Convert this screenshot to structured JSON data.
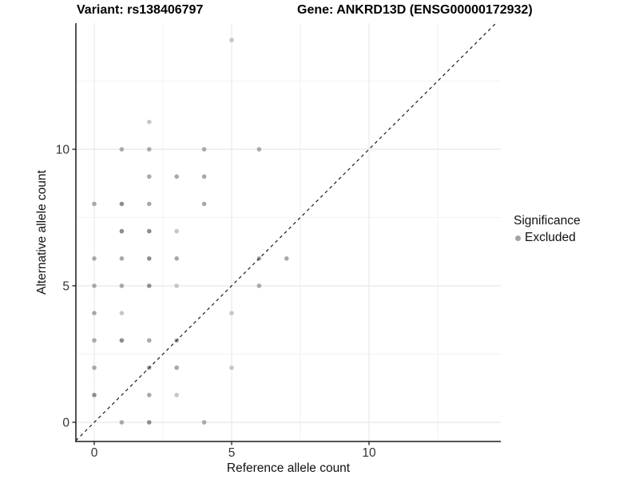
{
  "chart_data": {
    "type": "scatter",
    "title_left": "Variant: rs138406797",
    "title_right": "Gene: ANKRD13D (ENSG00000172932)",
    "xlabel": "Reference allele count",
    "ylabel": "Alternative allele count",
    "x_ticks": [
      0,
      5,
      10
    ],
    "y_ticks": [
      0,
      5,
      10
    ],
    "x_minor_gridlines": [
      2.5,
      7.5,
      12.5
    ],
    "y_minor_gridlines": [
      2.5,
      7.5,
      12.5
    ],
    "xlim": [
      -0.67,
      14.8
    ],
    "ylim": [
      -0.7,
      14.62
    ],
    "grid": "on",
    "identity_line": {
      "show": true,
      "style": "dashed",
      "slope": 1,
      "intercept": 0,
      "color": "#1b1b1b"
    },
    "legend": {
      "position": "right",
      "title": "Significance",
      "items": [
        {
          "label": "Excluded",
          "color": "#a3a3a3"
        }
      ]
    },
    "point_shade_colors": {
      "d": "#8d8d8d",
      "m": "#a8a8a8",
      "l": "#c6c6c6"
    },
    "series": [
      {
        "name": "Excluded",
        "points": [
          [
            5,
            14,
            "l"
          ],
          [
            2,
            11,
            "l"
          ],
          [
            1,
            10,
            "m"
          ],
          [
            2,
            10,
            "m"
          ],
          [
            4,
            10,
            "m"
          ],
          [
            6,
            10,
            "m"
          ],
          [
            2,
            9,
            "m"
          ],
          [
            3,
            9,
            "m"
          ],
          [
            4,
            9,
            "m"
          ],
          [
            0,
            8,
            "m"
          ],
          [
            1,
            8,
            "d"
          ],
          [
            2,
            8,
            "m"
          ],
          [
            4,
            8,
            "m"
          ],
          [
            1,
            7,
            "d"
          ],
          [
            2,
            7,
            "d"
          ],
          [
            3,
            7,
            "l"
          ],
          [
            0,
            6,
            "m"
          ],
          [
            1,
            6,
            "m"
          ],
          [
            2,
            6,
            "d"
          ],
          [
            3,
            6,
            "m"
          ],
          [
            6,
            6,
            "m"
          ],
          [
            7,
            6,
            "m"
          ],
          [
            0,
            5,
            "m"
          ],
          [
            1,
            5,
            "m"
          ],
          [
            2,
            5,
            "d"
          ],
          [
            3,
            5,
            "l"
          ],
          [
            6,
            5,
            "m"
          ],
          [
            0,
            4,
            "m"
          ],
          [
            1,
            4,
            "l"
          ],
          [
            5,
            4,
            "l"
          ],
          [
            0,
            3,
            "m"
          ],
          [
            1,
            3,
            "d"
          ],
          [
            2,
            3,
            "m"
          ],
          [
            3,
            3,
            "m"
          ],
          [
            0,
            2,
            "m"
          ],
          [
            2,
            2,
            "m"
          ],
          [
            3,
            2,
            "m"
          ],
          [
            5,
            2,
            "l"
          ],
          [
            0,
            1,
            "d"
          ],
          [
            2,
            1,
            "m"
          ],
          [
            3,
            1,
            "l"
          ],
          [
            1,
            0,
            "m"
          ],
          [
            2,
            0,
            "d"
          ],
          [
            4,
            0,
            "m"
          ]
        ]
      }
    ],
    "colors": {
      "major_gridline": "#e8e8e8",
      "minor_gridline": "#f2f2f2",
      "axis_line": "#1a1a1a",
      "tick_label": "#333333"
    }
  }
}
